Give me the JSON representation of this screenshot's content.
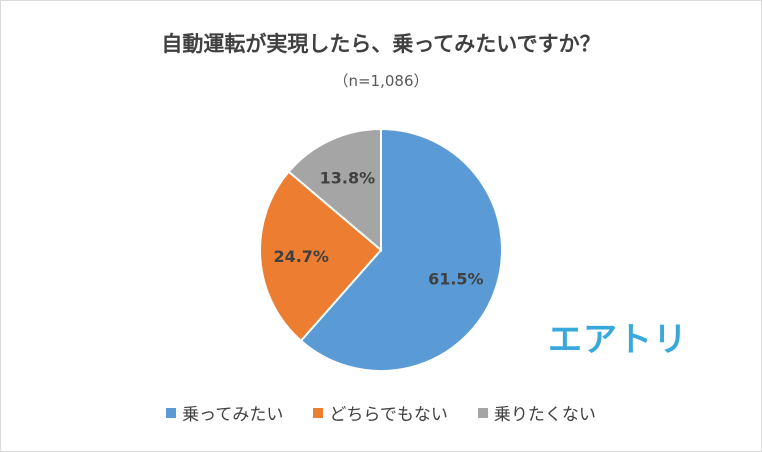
{
  "chart_data": {
    "type": "pie",
    "title": "自動運転が実現したら、乗ってみたいですか？",
    "subtitle": "（n=1,086）",
    "slices": [
      {
        "label": "乗ってみたい",
        "value": 61.5,
        "value_label": "61.5%",
        "color": "#5b9bd5"
      },
      {
        "label": "どちらでもない",
        "value": 24.7,
        "value_label": "24.7%",
        "color": "#ed7d31"
      },
      {
        "label": "乗りたくない",
        "value": 13.8,
        "value_label": "13.8%",
        "color": "#a5a5a5"
      }
    ],
    "start_angle": "12 o'clock",
    "direction": "clockwise",
    "legend_position": "bottom"
  },
  "logo": {
    "text": "エアトリ",
    "color": "#39a9dc"
  }
}
